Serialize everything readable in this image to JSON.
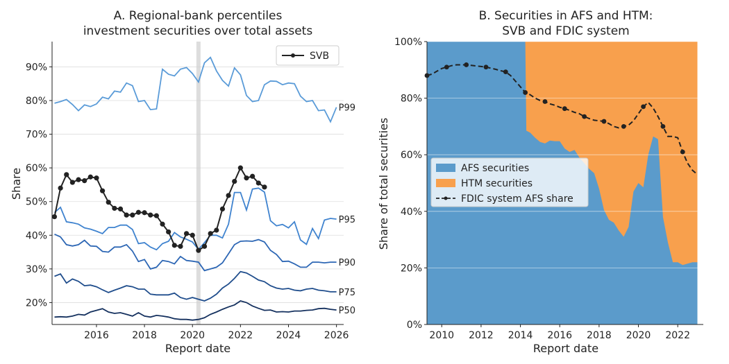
{
  "colors": {
    "pct_p99": "#5a9bd8",
    "pct_p95": "#3f83cf",
    "pct_p90": "#2c66b4",
    "pct_p75": "#1f4d8c",
    "pct_p50": "#14305e",
    "svb": "#222222",
    "afs_fill": "#5b9bcb",
    "htm_fill": "#f8a04d",
    "fdic_line": "#222222",
    "grid": "#dddddd",
    "vband": "#cfcfcf"
  },
  "chart_data": [
    {
      "type": "line",
      "title": "A. Regional-bank percentiles",
      "subtitle": "investment securities over total assets",
      "xlabel": "Report date",
      "ylabel": "Share",
      "xlim": [
        2014.15,
        2026.3
      ],
      "ylim": [
        0.135,
        0.975
      ],
      "xticks": [
        2016,
        2018,
        2020,
        2022,
        2024,
        2026
      ],
      "xtick_labels": [
        "2016",
        "2018",
        "2020",
        "2022",
        "2024",
        "2026"
      ],
      "yticks": [
        0.2,
        0.3,
        0.4,
        0.5,
        0.6,
        0.7,
        0.8,
        0.9
      ],
      "ytick_labels": [
        "20%",
        "30%",
        "40%",
        "50%",
        "60%",
        "70%",
        "80%",
        "90%"
      ],
      "grid": "horizontal",
      "legend": {
        "position": "top-right",
        "entries": [
          "SVB"
        ]
      },
      "shaded_x": 2020.25,
      "x": [
        2014.25,
        2014.5,
        2014.75,
        2015.0,
        2015.25,
        2015.5,
        2015.75,
        2016.0,
        2016.25,
        2016.5,
        2016.75,
        2017.0,
        2017.25,
        2017.5,
        2017.75,
        2018.0,
        2018.25,
        2018.5,
        2018.75,
        2019.0,
        2019.25,
        2019.5,
        2019.75,
        2020.0,
        2020.25,
        2020.5,
        2020.75,
        2021.0,
        2021.25,
        2021.5,
        2021.75,
        2022.0,
        2022.25,
        2022.5,
        2022.75,
        2023.0,
        2023.25,
        2023.5,
        2023.75,
        2024.0,
        2024.25,
        2024.5,
        2024.75,
        2025.0,
        2025.25,
        2025.5,
        2025.75,
        2026.0
      ],
      "series": [
        {
          "name": "P99",
          "values": [
            0.792,
            0.797,
            0.803,
            0.788,
            0.77,
            0.787,
            0.782,
            0.79,
            0.81,
            0.805,
            0.828,
            0.825,
            0.852,
            0.844,
            0.797,
            0.8,
            0.773,
            0.775,
            0.893,
            0.878,
            0.873,
            0.893,
            0.898,
            0.88,
            0.855,
            0.912,
            0.928,
            0.888,
            0.86,
            0.843,
            0.897,
            0.876,
            0.815,
            0.797,
            0.8,
            0.847,
            0.858,
            0.857,
            0.847,
            0.852,
            0.85,
            0.813,
            0.797,
            0.8,
            0.77,
            0.772,
            0.737,
            0.78
          ]
        },
        {
          "name": "P95",
          "values": [
            0.467,
            0.483,
            0.44,
            0.437,
            0.433,
            0.422,
            0.418,
            0.412,
            0.405,
            0.423,
            0.423,
            0.43,
            0.43,
            0.417,
            0.375,
            0.378,
            0.365,
            0.357,
            0.375,
            0.382,
            0.408,
            0.395,
            0.388,
            0.38,
            0.358,
            0.378,
            0.4,
            0.4,
            0.392,
            0.433,
            0.527,
            0.527,
            0.475,
            0.537,
            0.54,
            0.528,
            0.443,
            0.428,
            0.432,
            0.422,
            0.44,
            0.386,
            0.373,
            0.42,
            0.39,
            0.445,
            0.45,
            0.448
          ]
        },
        {
          "name": "P90",
          "values": [
            0.403,
            0.395,
            0.372,
            0.368,
            0.372,
            0.385,
            0.368,
            0.367,
            0.352,
            0.35,
            0.365,
            0.365,
            0.372,
            0.353,
            0.322,
            0.328,
            0.3,
            0.305,
            0.325,
            0.322,
            0.315,
            0.337,
            0.325,
            0.323,
            0.32,
            0.295,
            0.3,
            0.305,
            0.318,
            0.345,
            0.372,
            0.382,
            0.383,
            0.382,
            0.387,
            0.38,
            0.355,
            0.343,
            0.322,
            0.323,
            0.315,
            0.305,
            0.305,
            0.32,
            0.32,
            0.318,
            0.32,
            0.32
          ]
        },
        {
          "name": "P75",
          "values": [
            0.278,
            0.285,
            0.258,
            0.27,
            0.263,
            0.25,
            0.252,
            0.247,
            0.238,
            0.23,
            0.237,
            0.243,
            0.25,
            0.247,
            0.24,
            0.24,
            0.225,
            0.223,
            0.223,
            0.223,
            0.228,
            0.215,
            0.21,
            0.215,
            0.21,
            0.205,
            0.213,
            0.225,
            0.243,
            0.255,
            0.272,
            0.292,
            0.288,
            0.278,
            0.267,
            0.262,
            0.25,
            0.243,
            0.24,
            0.242,
            0.237,
            0.235,
            0.24,
            0.242,
            0.237,
            0.235,
            0.232,
            0.232
          ]
        },
        {
          "name": "P50",
          "values": [
            0.157,
            0.158,
            0.157,
            0.16,
            0.165,
            0.163,
            0.172,
            0.177,
            0.182,
            0.172,
            0.168,
            0.17,
            0.165,
            0.16,
            0.17,
            0.16,
            0.157,
            0.162,
            0.16,
            0.157,
            0.152,
            0.15,
            0.15,
            0.148,
            0.15,
            0.155,
            0.165,
            0.172,
            0.18,
            0.187,
            0.193,
            0.205,
            0.2,
            0.19,
            0.183,
            0.177,
            0.178,
            0.172,
            0.173,
            0.172,
            0.175,
            0.175,
            0.177,
            0.178,
            0.182,
            0.183,
            0.18,
            0.178
          ]
        },
        {
          "name": "SVB",
          "x": [
            2014.25,
            2014.5,
            2014.75,
            2015.0,
            2015.25,
            2015.5,
            2015.75,
            2016.0,
            2016.25,
            2016.5,
            2016.75,
            2017.0,
            2017.25,
            2017.5,
            2017.75,
            2018.0,
            2018.25,
            2018.5,
            2018.75,
            2019.0,
            2019.25,
            2019.5,
            2019.75,
            2020.0,
            2020.25,
            2020.5,
            2020.75,
            2021.0,
            2021.25,
            2021.5,
            2021.75,
            2022.0,
            2022.25,
            2022.5,
            2022.75,
            2023.0
          ],
          "values": [
            0.455,
            0.54,
            0.58,
            0.557,
            0.565,
            0.562,
            0.573,
            0.57,
            0.532,
            0.498,
            0.48,
            0.478,
            0.46,
            0.46,
            0.468,
            0.467,
            0.46,
            0.458,
            0.433,
            0.41,
            0.37,
            0.367,
            0.405,
            0.4,
            0.355,
            0.367,
            0.405,
            0.415,
            0.478,
            0.518,
            0.56,
            0.6,
            0.57,
            0.575,
            0.555,
            0.543
          ]
        }
      ]
    },
    {
      "type": "area",
      "title": "B. Securities in AFS and HTM:",
      "subtitle": "SVB and FDIC system",
      "xlabel": "Report date",
      "ylabel": "Share of total securities",
      "xlim": [
        2009.25,
        2023.3
      ],
      "ylim": [
        0,
        1
      ],
      "xticks": [
        2010,
        2012,
        2014,
        2016,
        2018,
        2020,
        2022
      ],
      "xtick_labels": [
        "2010",
        "2012",
        "2014",
        "2016",
        "2018",
        "2020",
        "2022"
      ],
      "yticks": [
        0,
        0.2,
        0.4,
        0.6,
        0.8,
        1.0
      ],
      "ytick_labels": [
        "0%",
        "20%",
        "40%",
        "60%",
        "80%",
        "100%"
      ],
      "grid": "horizontal",
      "legend": {
        "position": "center-left",
        "entries": [
          "AFS securities",
          "HTM securities",
          "FDIC system AFS share"
        ]
      },
      "afs": {
        "x": [
          2009.25,
          2014.25,
          2014.3,
          2014.5,
          2014.75,
          2015.0,
          2015.25,
          2015.5,
          2015.75,
          2016.0,
          2016.25,
          2016.5,
          2016.75,
          2017.0,
          2017.25,
          2017.5,
          2017.75,
          2018.0,
          2018.25,
          2018.5,
          2018.75,
          2019.0,
          2019.25,
          2019.5,
          2019.75,
          2020.0,
          2020.25,
          2020.5,
          2020.75,
          2021.0,
          2021.25,
          2021.5,
          2021.75,
          2022.0,
          2022.25,
          2022.5,
          2022.75,
          2023.0
        ],
        "values": [
          1.0,
          1.0,
          0.685,
          0.678,
          0.66,
          0.645,
          0.64,
          0.65,
          0.648,
          0.648,
          0.622,
          0.61,
          0.617,
          0.59,
          0.57,
          0.55,
          0.535,
          0.48,
          0.405,
          0.37,
          0.36,
          0.332,
          0.31,
          0.345,
          0.47,
          0.5,
          0.485,
          0.6,
          0.665,
          0.655,
          0.38,
          0.29,
          0.22,
          0.22,
          0.21,
          0.215,
          0.22,
          0.22
        ]
      },
      "fdic_afs_share": {
        "x": [
          2009.25,
          2009.5,
          2009.75,
          2010.0,
          2010.25,
          2010.5,
          2010.75,
          2011.0,
          2011.25,
          2011.5,
          2011.75,
          2012.0,
          2012.25,
          2012.5,
          2012.75,
          2013.0,
          2013.25,
          2013.5,
          2013.75,
          2014.0,
          2014.25,
          2014.5,
          2014.75,
          2015.0,
          2015.25,
          2015.5,
          2015.75,
          2016.0,
          2016.25,
          2016.5,
          2016.75,
          2017.0,
          2017.25,
          2017.5,
          2017.75,
          2018.0,
          2018.25,
          2018.5,
          2018.75,
          2019.0,
          2019.25,
          2019.5,
          2019.75,
          2020.0,
          2020.25,
          2020.5,
          2020.75,
          2021.0,
          2021.25,
          2021.5,
          2021.75,
          2022.0,
          2022.25,
          2022.5,
          2022.75,
          2023.0
        ],
        "values": [
          0.88,
          0.885,
          0.895,
          0.905,
          0.91,
          0.915,
          0.918,
          0.918,
          0.918,
          0.916,
          0.914,
          0.912,
          0.91,
          0.906,
          0.902,
          0.897,
          0.893,
          0.88,
          0.86,
          0.84,
          0.82,
          0.812,
          0.8,
          0.792,
          0.788,
          0.78,
          0.775,
          0.768,
          0.763,
          0.757,
          0.75,
          0.745,
          0.735,
          0.728,
          0.722,
          0.72,
          0.718,
          0.71,
          0.7,
          0.695,
          0.7,
          0.705,
          0.72,
          0.745,
          0.77,
          0.785,
          0.765,
          0.735,
          0.7,
          0.665,
          0.665,
          0.66,
          0.61,
          0.57,
          0.545,
          0.53
        ],
        "marker_x": [
          2009.25,
          2010.25,
          2011.25,
          2012.25,
          2013.25,
          2014.25,
          2015.25,
          2016.25,
          2017.25,
          2018.25,
          2019.25,
          2020.25,
          2021.25,
          2022.25
        ]
      }
    }
  ]
}
